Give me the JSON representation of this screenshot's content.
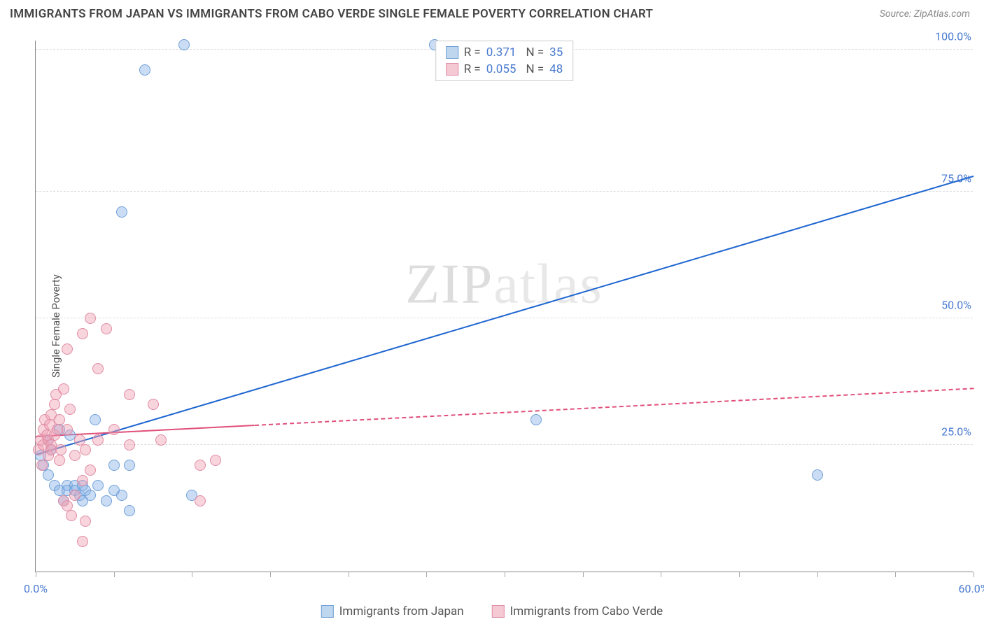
{
  "title": "IMMIGRANTS FROM JAPAN VS IMMIGRANTS FROM CABO VERDE SINGLE FEMALE POVERTY CORRELATION CHART",
  "source": "Source: ZipAtlas.com",
  "y_axis_label": "Single Female Poverty",
  "watermark": {
    "bold": "ZIP",
    "light": "atlas"
  },
  "chart": {
    "type": "scatter",
    "xlim": [
      0,
      60
    ],
    "ylim": [
      0,
      105
    ],
    "x_ticks_major": [
      0,
      60
    ],
    "x_ticks_minor": [
      5,
      10,
      15,
      20,
      25,
      30,
      35,
      40,
      45,
      50,
      55
    ],
    "x_tick_labels": {
      "0": "0.0%",
      "60": "60.0%"
    },
    "y_gridlines": [
      25,
      50,
      75,
      103
    ],
    "y_tick_labels": {
      "25": "25.0%",
      "50": "50.0%",
      "75": "75.0%",
      "103": "100.0%"
    },
    "grid_color": "#dddddd",
    "axis_color": "#888888",
    "background_color": "#ffffff",
    "tick_label_color": "#4a7bd0",
    "point_radius": 8,
    "point_stroke_width": 1.5,
    "series": [
      {
        "name": "Immigrants from Japan",
        "color_fill": "rgba(140,180,230,0.45)",
        "color_stroke": "#6fa0d8",
        "swatch_fill": "#bfd6ef",
        "swatch_stroke": "#6fa0d8",
        "R": "0.371",
        "N": "35",
        "trend": {
          "x1": 0,
          "y1": 23,
          "x2": 60,
          "y2": 78,
          "color": "#1e66d0",
          "width": 2.5,
          "dash": false,
          "solid_until_x": 60
        },
        "points": [
          [
            0.3,
            23
          ],
          [
            0.5,
            21
          ],
          [
            0.8,
            26
          ],
          [
            0.8,
            19
          ],
          [
            1.0,
            24
          ],
          [
            1.2,
            17
          ],
          [
            1.5,
            28
          ],
          [
            1.5,
            16
          ],
          [
            1.8,
            14
          ],
          [
            2.0,
            17
          ],
          [
            2.0,
            16
          ],
          [
            2.2,
            27
          ],
          [
            2.5,
            17
          ],
          [
            2.5,
            16
          ],
          [
            2.8,
            15
          ],
          [
            3.0,
            14
          ],
          [
            3.0,
            17
          ],
          [
            3.2,
            16
          ],
          [
            3.5,
            15
          ],
          [
            3.8,
            30
          ],
          [
            4.0,
            17
          ],
          [
            4.5,
            14
          ],
          [
            5.0,
            21
          ],
          [
            5.0,
            16
          ],
          [
            5.5,
            15
          ],
          [
            6.0,
            12
          ],
          [
            6.0,
            21
          ],
          [
            7.0,
            99
          ],
          [
            9.5,
            104
          ],
          [
            10.0,
            15
          ],
          [
            5.5,
            71
          ],
          [
            25.5,
            104
          ],
          [
            28.5,
            103
          ],
          [
            32.0,
            30
          ],
          [
            50.0,
            19
          ]
        ]
      },
      {
        "name": "Immigrants from Cabo Verde",
        "color_fill": "rgba(240,160,180,0.45)",
        "color_stroke": "#e08ca4",
        "swatch_fill": "#f5c9d4",
        "swatch_stroke": "#e08ca4",
        "R": "0.055",
        "N": "48",
        "trend": {
          "x1": 0,
          "y1": 26.5,
          "x2": 60,
          "y2": 36,
          "color": "#e04f7a",
          "width": 2,
          "dash": true,
          "solid_until_x": 14
        },
        "points": [
          [
            0.2,
            24
          ],
          [
            0.3,
            26
          ],
          [
            0.4,
            21
          ],
          [
            0.5,
            28
          ],
          [
            0.5,
            25
          ],
          [
            0.6,
            30
          ],
          [
            0.7,
            27
          ],
          [
            0.8,
            23
          ],
          [
            0.8,
            26
          ],
          [
            0.9,
            29
          ],
          [
            1.0,
            25
          ],
          [
            1.0,
            24
          ],
          [
            1.0,
            31
          ],
          [
            1.2,
            33
          ],
          [
            1.2,
            27
          ],
          [
            1.3,
            35
          ],
          [
            1.4,
            28
          ],
          [
            1.5,
            22
          ],
          [
            1.5,
            30
          ],
          [
            1.6,
            24
          ],
          [
            1.8,
            36
          ],
          [
            1.8,
            14
          ],
          [
            2.0,
            28
          ],
          [
            2.0,
            44
          ],
          [
            2.0,
            13
          ],
          [
            2.2,
            32
          ],
          [
            2.3,
            11
          ],
          [
            2.5,
            23
          ],
          [
            2.5,
            15
          ],
          [
            2.8,
            26
          ],
          [
            3.0,
            47
          ],
          [
            3.0,
            18
          ],
          [
            3.2,
            10
          ],
          [
            3.2,
            24
          ],
          [
            3.5,
            20
          ],
          [
            3.5,
            50
          ],
          [
            4.0,
            26
          ],
          [
            4.0,
            40
          ],
          [
            4.5,
            48
          ],
          [
            5.0,
            28
          ],
          [
            6.0,
            35
          ],
          [
            6.0,
            25
          ],
          [
            7.5,
            33
          ],
          [
            8.0,
            26
          ],
          [
            10.5,
            14
          ],
          [
            10.5,
            21
          ],
          [
            11.5,
            22
          ],
          [
            3.0,
            6
          ]
        ]
      }
    ]
  },
  "legend_bottom": [
    {
      "label": "Immigrants from Japan",
      "series_idx": 0
    },
    {
      "label": "Immigrants from Cabo Verde",
      "series_idx": 1
    }
  ]
}
